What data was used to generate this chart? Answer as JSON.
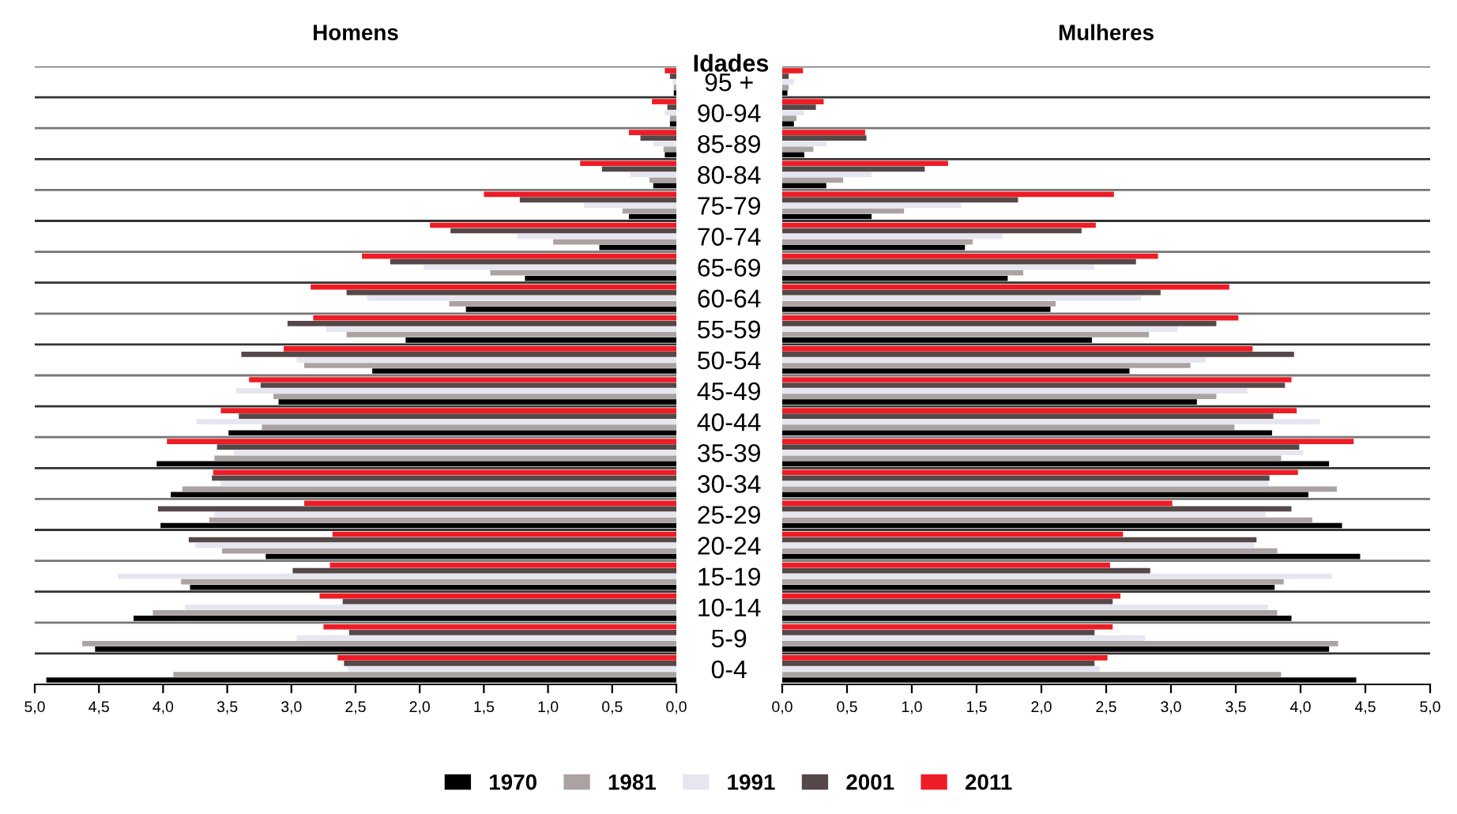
{
  "chart_data": [
    {
      "type": "bar",
      "orientation": "horizontal",
      "title": "Homens",
      "ylabel": "Idades",
      "legend": "bottom",
      "grid": "y",
      "categories": [
        "95 +",
        "90-94",
        "85-89",
        "80-84",
        "75-79",
        "70-74",
        "65-69",
        "60-64",
        "55-59",
        "50-54",
        "45-49",
        "40-44",
        "35-39",
        "30-34",
        "25-29",
        "20-24",
        "15-19",
        "10-14",
        "5-9",
        "0-4"
      ],
      "xlim": [
        5,
        0
      ],
      "xticks": [
        {
          "value": 5,
          "label": "5,0"
        },
        {
          "value": 4.5,
          "label": "4,5"
        },
        {
          "value": 4,
          "label": "4,0"
        },
        {
          "value": 3.5,
          "label": "3,5"
        },
        {
          "value": 3,
          "label": "3,0"
        },
        {
          "value": 2.5,
          "label": "2,5"
        },
        {
          "value": 2,
          "label": "2,0"
        },
        {
          "value": 1.5,
          "label": "1,5"
        },
        {
          "value": 1,
          "label": "1,0"
        },
        {
          "value": 0.5,
          "label": "0,5"
        },
        {
          "value": 0,
          "label": "0,0"
        }
      ],
      "series": [
        {
          "name": "1970",
          "color": "#000000",
          "values": [
            0.02,
            0.05,
            0.09,
            0.18,
            0.37,
            0.6,
            1.18,
            1.64,
            2.11,
            2.37,
            3.1,
            3.49,
            4.05,
            3.94,
            4.02,
            3.2,
            3.79,
            4.23,
            4.53,
            4.91
          ]
        },
        {
          "name": "1981",
          "color": "#aaa3a1",
          "values": [
            0.02,
            0.05,
            0.1,
            0.21,
            0.42,
            0.96,
            1.45,
            1.77,
            2.57,
            2.9,
            3.14,
            3.23,
            3.6,
            3.85,
            3.64,
            3.54,
            3.86,
            4.08,
            4.63,
            3.92
          ]
        },
        {
          "name": "1991",
          "color": "#e6e6f0",
          "values": [
            0.03,
            0.09,
            0.18,
            0.36,
            0.72,
            1.24,
            1.97,
            2.41,
            2.73,
            2.96,
            3.43,
            3.74,
            3.45,
            3.55,
            3.6,
            3.75,
            4.35,
            3.83,
            2.96,
            2.56
          ]
        },
        {
          "name": "2001",
          "color": "#554848",
          "values": [
            0.05,
            0.07,
            0.28,
            0.58,
            1.22,
            1.76,
            2.23,
            2.57,
            3.03,
            3.39,
            3.24,
            3.41,
            3.58,
            3.62,
            4.04,
            3.8,
            2.99,
            2.6,
            2.55,
            2.59
          ]
        },
        {
          "name": "2011",
          "color": "#ee1c25",
          "values": [
            0.09,
            0.19,
            0.37,
            0.75,
            1.5,
            1.92,
            2.45,
            2.85,
            2.83,
            3.06,
            3.33,
            3.55,
            3.97,
            3.61,
            2.9,
            2.68,
            2.7,
            2.78,
            2.75,
            2.64
          ]
        }
      ]
    },
    {
      "type": "bar",
      "orientation": "horizontal",
      "title": "Mulheres",
      "grid": "y",
      "tick_labels": "x",
      "categories": [
        null,
        null,
        null,
        null,
        null,
        null,
        null,
        null,
        null,
        null,
        null,
        null,
        null,
        null,
        null,
        null,
        null,
        null,
        null,
        null
      ],
      "xlim": [
        0,
        5
      ],
      "xticks": [
        {
          "value": 0,
          "label": "0,0"
        },
        {
          "value": 0.5,
          "label": "0,5"
        },
        {
          "value": 1,
          "label": "1,0"
        },
        {
          "value": 1.5,
          "label": "1,5"
        },
        {
          "value": 2,
          "label": "2,0"
        },
        {
          "value": 2.5,
          "label": "2,5"
        },
        {
          "value": 3,
          "label": "3,0"
        },
        {
          "value": 3.5,
          "label": "3,5"
        },
        {
          "value": 4,
          "label": "4,0"
        },
        {
          "value": 4.5,
          "label": "4,5"
        },
        {
          "value": 5,
          "label": "5,0"
        }
      ],
      "series": [
        {
          "name": "1970",
          "color": "#000000",
          "values": [
            0.04,
            0.09,
            0.17,
            0.34,
            0.69,
            1.41,
            1.74,
            2.07,
            2.39,
            2.68,
            3.2,
            3.78,
            4.22,
            4.06,
            4.32,
            4.46,
            3.8,
            3.93,
            4.22,
            4.43
          ]
        },
        {
          "name": "1981",
          "color": "#aaa3a1",
          "values": [
            0.05,
            0.11,
            0.24,
            0.47,
            0.94,
            1.47,
            1.86,
            2.11,
            2.83,
            3.15,
            3.35,
            3.49,
            3.85,
            4.28,
            4.09,
            3.82,
            3.87,
            3.82,
            4.29,
            3.85
          ]
        },
        {
          "name": "1991",
          "color": "#e6e6f0",
          "values": [
            0.09,
            0.17,
            0.34,
            0.69,
            1.38,
            1.7,
            2.41,
            2.77,
            3.05,
            3.27,
            3.59,
            4.15,
            4.02,
            3.75,
            3.73,
            3.64,
            4.24,
            3.75,
            2.8,
            2.45
          ]
        },
        {
          "name": "2001",
          "color": "#554848",
          "values": [
            0.05,
            0.26,
            0.65,
            1.1,
            1.82,
            2.31,
            2.73,
            2.92,
            3.35,
            3.95,
            3.88,
            3.79,
            3.99,
            3.76,
            3.93,
            3.66,
            2.84,
            2.55,
            2.41,
            2.41
          ]
        },
        {
          "name": "2011",
          "color": "#ee1c25",
          "values": [
            0.16,
            0.32,
            0.64,
            1.28,
            2.56,
            2.42,
            2.9,
            3.45,
            3.52,
            3.63,
            3.93,
            3.97,
            4.41,
            3.98,
            3.01,
            2.63,
            2.53,
            2.61,
            2.55,
            2.51
          ]
        }
      ]
    }
  ]
}
